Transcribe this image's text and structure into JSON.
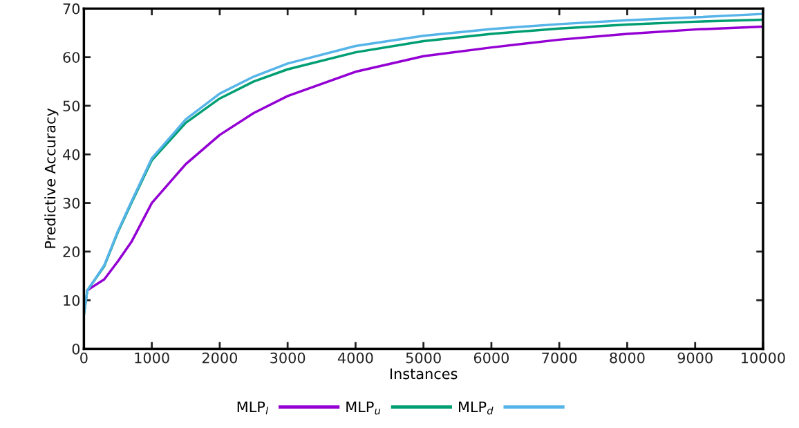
{
  "chart_data": {
    "type": "line",
    "xlabel": "Instances",
    "ylabel": "Predictive Accuracy",
    "x": [
      0,
      50,
      100,
      300,
      500,
      700,
      1000,
      1500,
      2000,
      2500,
      3000,
      4000,
      5000,
      6000,
      7000,
      8000,
      9000,
      10000
    ],
    "series": [
      {
        "name": "MLP$_{l}$",
        "color": "#9400d3",
        "values": [
          null,
          12,
          12.5,
          14.3,
          18,
          22,
          30,
          38,
          44,
          48.5,
          52,
          57,
          60.2,
          62,
          63.6,
          64.8,
          65.7,
          66.3
        ]
      },
      {
        "name": "MLP$_{u}$",
        "color": "#009e73",
        "values": [
          7,
          12,
          13,
          17,
          24,
          30,
          38.8,
          46.5,
          51.5,
          55,
          57.5,
          61,
          63.3,
          64.8,
          65.9,
          66.7,
          67.3,
          67.7
        ]
      },
      {
        "name": "MLP$_{d}$",
        "color": "#56b4e9",
        "values": [
          7,
          12,
          13,
          17.2,
          24.2,
          30.3,
          39.2,
          47.2,
          52.5,
          56,
          58.7,
          62.3,
          64.4,
          65.8,
          66.8,
          67.6,
          68.2,
          68.9
        ]
      }
    ],
    "xlim": [
      0,
      10000
    ],
    "xticks": [
      0,
      1000,
      2000,
      3000,
      4000,
      5000,
      6000,
      7000,
      8000,
      9000,
      10000
    ],
    "ylim": [
      0,
      70
    ],
    "yticks": [
      0,
      10,
      20,
      30,
      40,
      50,
      60,
      70
    ],
    "legend": "bottom",
    "grid": false,
    "marker": "none",
    "line_style": "solid"
  }
}
